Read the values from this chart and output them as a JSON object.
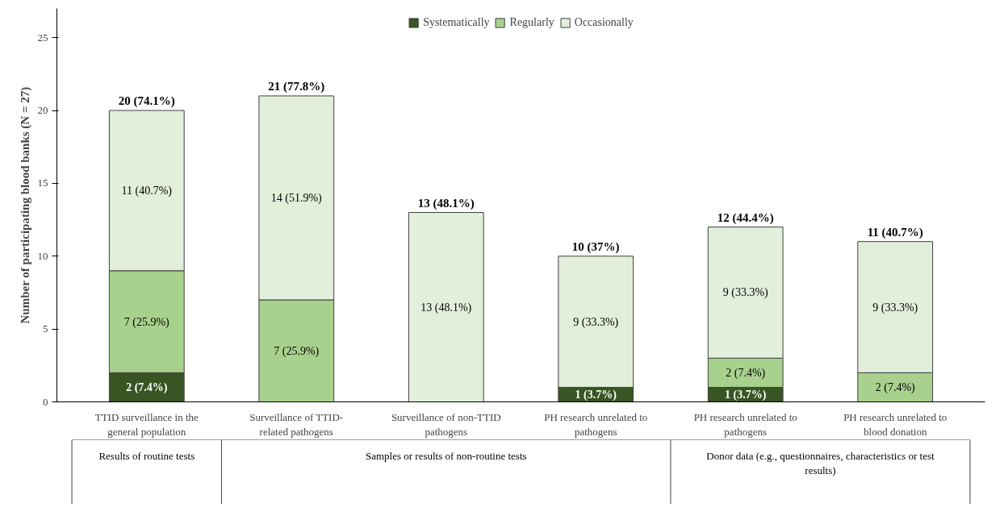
{
  "chart_data": {
    "type": "bar",
    "stacked": true,
    "ylabel": "Number of participating blood banks (N = 27)",
    "categories": [
      "TTID surveillance in the general population",
      "Surveillance of TTID-related pathogens",
      "Surveillance of non-TTID pathogens",
      "PH research unrelated to pathogens",
      "PH research unrelated to pathogens",
      "PH research unrelated to blood donation"
    ],
    "series": [
      {
        "name": "Systematically",
        "color": "#375623",
        "values": [
          2,
          0,
          0,
          1,
          1,
          0
        ],
        "value_labels": [
          "2 (7.4%)",
          null,
          null,
          "1 (3.7%)",
          "1 (3.7%)",
          null
        ]
      },
      {
        "name": "Regularly",
        "color": "#a9d18e",
        "values": [
          7,
          7,
          0,
          0,
          2,
          2
        ],
        "value_labels": [
          "7 (25.9%)",
          "7 (25.9%)",
          null,
          null,
          "2 (7.4%)",
          "2 (7.4%)"
        ]
      },
      {
        "name": "Occasionally",
        "color": "#e2efda",
        "values": [
          11,
          14,
          13,
          9,
          9,
          9
        ],
        "value_labels": [
          "11 (40.7%)",
          "14 (51.9%)",
          "13 (48.1%)",
          "9 (33.3%)",
          "9 (33.3%)",
          "9 (33.3%)"
        ]
      }
    ],
    "totals": [
      "20 (74.1%)",
      "21 (77.8%)",
      "13 (48.1%)",
      "10 (37%)",
      "12 (44.4%)",
      "11 (40.7%)"
    ],
    "annotations": [
      "Results of routine tests",
      "Samples or results of non-routine tests",
      "Donor data (e.g., questionnaires, characteristics or test results)"
    ],
    "ylim": [
      0,
      27
    ],
    "yticks": [
      0,
      5,
      10,
      15,
      20,
      25
    ],
    "grid": false,
    "legend": "top"
  }
}
